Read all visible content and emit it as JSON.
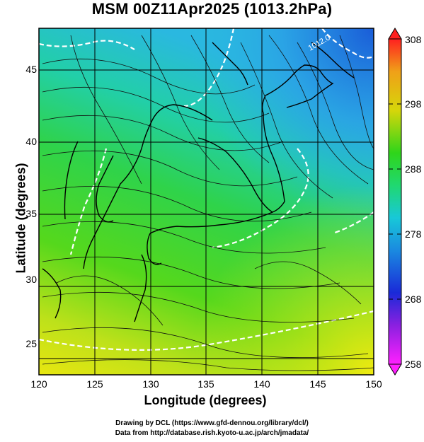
{
  "header": {
    "title": "MSM 00Z11Apr2025 (1013.2hPa)"
  },
  "axes": {
    "xlabel": "Longitude (degrees)",
    "ylabel": "Latitude  (degrees)",
    "xticks": [
      "120",
      "125",
      "130",
      "135",
      "140",
      "145",
      "150"
    ],
    "yticks": [
      "25",
      "30",
      "35",
      "40",
      "45"
    ],
    "xrange": [
      120,
      150
    ],
    "yrange": [
      22.4,
      47.6
    ]
  },
  "colorbar": {
    "ticks": [
      "308",
      "298",
      "288",
      "278",
      "268",
      "258"
    ],
    "range": [
      258,
      308
    ]
  },
  "map": {
    "contour_labels": [
      "1012.0"
    ],
    "colors": {
      "warm": "#d6d60a",
      "green": "#2fd51a",
      "cyan": "#18c8d8",
      "blue": "#1a5cd8",
      "magenta": "#ff20ff",
      "red": "#ff2020"
    }
  },
  "footer": {
    "line1": "Drawing by DCL (https://www.gfd-dennou.org/library/dcl/)",
    "line2": "Data from http://database.rish.kyoto-u.ac.jp/arch/jmadata/"
  }
}
